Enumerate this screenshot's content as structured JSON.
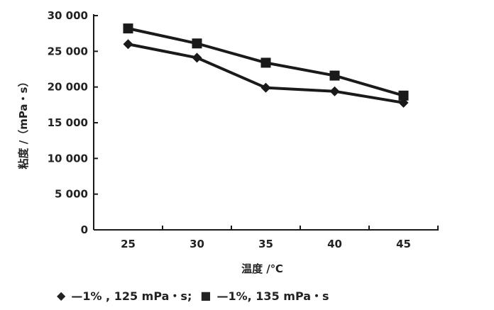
{
  "chart_data": {
    "type": "line",
    "title": "",
    "xlabel": "温度 /℃",
    "ylabel": "粘度 /（mPa・s）",
    "categories": [
      "25",
      "30",
      "35",
      "40",
      "45"
    ],
    "ylim": [
      0,
      30000
    ],
    "yticks": [
      0,
      5000,
      10000,
      15000,
      20000,
      25000,
      30000
    ],
    "ytick_labels": [
      "0",
      "5 000",
      "10 000",
      "15 000",
      "20 000",
      "25 000",
      "30 000"
    ],
    "grid": false,
    "legend_position": "bottom",
    "series": [
      {
        "name": "1%，125 mPa・s",
        "marker": "diamond",
        "values": [
          26000,
          24100,
          19900,
          19400,
          17800
        ]
      },
      {
        "name": "1%，135 mPa・s",
        "marker": "square",
        "values": [
          28200,
          26100,
          23400,
          21600,
          18800
        ]
      }
    ],
    "legend": {
      "item1": "—1% ,  125 mPa・s;",
      "item2": "—1%,   135 mPa・s"
    },
    "colors": {
      "line": "#1a1a1a"
    }
  }
}
